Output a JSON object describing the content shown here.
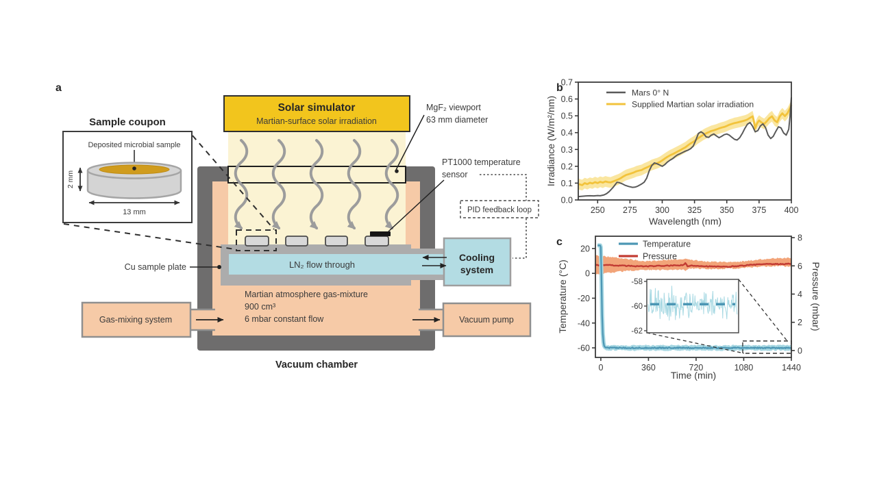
{
  "colors": {
    "solar_yellow": "#F2C51D",
    "beam_yellow": "#FBF3D3",
    "wall_gray": "#6E6D6D",
    "peach": "#F6CAA7",
    "plate_gray": "#ACACAC",
    "coupon_gray": "#D8D8D8",
    "cyl_gray": "#D4D4D4",
    "sample_gold": "#D09C1E",
    "cool_blue": "#B3DCE3",
    "mars_line": "#595959",
    "supplied_line": "#F2C33C",
    "supplied_band": "#FAE6A0",
    "temp_line": "#4C96B4",
    "temp_band": "#A6D7E2",
    "press_line": "#C23B33",
    "press_band": "#F2A479"
  },
  "panel_a": {
    "label": "a",
    "inset": {
      "title": "Sample coupon",
      "annotation": "Deposited microbial sample",
      "height": "2 mm",
      "diameter": "13 mm"
    },
    "solar": {
      "title": "Solar simulator",
      "subtitle": "Martian-surface solar irradiation"
    },
    "viewport": {
      "line1": "MgF₂ viewport",
      "line2": "63 mm diameter"
    },
    "sensor": {
      "line1": "PT1000 temperature",
      "line2": "sensor"
    },
    "pid": "PID feedback loop",
    "cooling": {
      "line1": "Cooling",
      "line2": "system"
    },
    "ln2": "LN₂ flow through",
    "cu_plate": "Cu sample plate",
    "atmosphere": {
      "line1": "Martian atmosphere gas-mixture",
      "line2": "900 cm³",
      "line3": "6 mbar constant flow"
    },
    "gas_box": "Gas-mixing system",
    "pump_box": "Vacuum pump",
    "chamber_label": "Vacuum chamber"
  },
  "chart_data": [
    {
      "id": "b",
      "type": "line",
      "panel_label": "b",
      "xlabel": "Wavelength (nm)",
      "ylabel": "Irradiance (W/m²/nm)",
      "xlim": [
        235,
        400
      ],
      "ylim": [
        0,
        0.7
      ],
      "xticks": [
        250,
        275,
        300,
        325,
        350,
        375,
        400
      ],
      "yticks": [
        0.0,
        0.1,
        0.2,
        0.3,
        0.4,
        0.5,
        0.6,
        0.7
      ],
      "grid": false,
      "legend_position": "upper left",
      "series": [
        {
          "name": "Mars 0° N",
          "color": "#595959",
          "points": [
            [
              235,
              0.02
            ],
            [
              238,
              0.022
            ],
            [
              241,
              0.024
            ],
            [
              244,
              0.025
            ],
            [
              247,
              0.024
            ],
            [
              250,
              0.026
            ],
            [
              252,
              0.025
            ],
            [
              255,
              0.03
            ],
            [
              257,
              0.038
            ],
            [
              259,
              0.05
            ],
            [
              262,
              0.075
            ],
            [
              265,
              0.105
            ],
            [
              267,
              0.102
            ],
            [
              269,
              0.096
            ],
            [
              271,
              0.088
            ],
            [
              274,
              0.08
            ],
            [
              277,
              0.075
            ],
            [
              279,
              0.076
            ],
            [
              281,
              0.082
            ],
            [
              284,
              0.095
            ],
            [
              286,
              0.105
            ],
            [
              288,
              0.13
            ],
            [
              290,
              0.175
            ],
            [
              292,
              0.205
            ],
            [
              294,
              0.22
            ],
            [
              296,
              0.215
            ],
            [
              298,
              0.208
            ],
            [
              300,
              0.2
            ],
            [
              302,
              0.21
            ],
            [
              304,
              0.225
            ],
            [
              306,
              0.236
            ],
            [
              308,
              0.245
            ],
            [
              310,
              0.258
            ],
            [
              312,
              0.268
            ],
            [
              314,
              0.275
            ],
            [
              316,
              0.283
            ],
            [
              318,
              0.29
            ],
            [
              320,
              0.296
            ],
            [
              322,
              0.305
            ],
            [
              324,
              0.32
            ],
            [
              326,
              0.355
            ],
            [
              328,
              0.395
            ],
            [
              330,
              0.405
            ],
            [
              332,
              0.395
            ],
            [
              334,
              0.375
            ],
            [
              336,
              0.372
            ],
            [
              338,
              0.385
            ],
            [
              340,
              0.392
            ],
            [
              342,
              0.38
            ],
            [
              344,
              0.37
            ],
            [
              346,
              0.378
            ],
            [
              348,
              0.388
            ],
            [
              350,
              0.392
            ],
            [
              352,
              0.385
            ],
            [
              354,
              0.372
            ],
            [
              356,
              0.36
            ],
            [
              358,
              0.356
            ],
            [
              360,
              0.37
            ],
            [
              362,
              0.395
            ],
            [
              364,
              0.425
            ],
            [
              366,
              0.45
            ],
            [
              368,
              0.46
            ],
            [
              370,
              0.438
            ],
            [
              372,
              0.405
            ],
            [
              374,
              0.412
            ],
            [
              376,
              0.44
            ],
            [
              378,
              0.452
            ],
            [
              380,
              0.43
            ],
            [
              382,
              0.385
            ],
            [
              384,
              0.365
            ],
            [
              386,
              0.378
            ],
            [
              388,
              0.408
            ],
            [
              390,
              0.435
            ],
            [
              392,
              0.428
            ],
            [
              394,
              0.398
            ],
            [
              396,
              0.385
            ],
            [
              398,
              0.42
            ],
            [
              399,
              0.5
            ],
            [
              400,
              0.61
            ]
          ]
        },
        {
          "name": "Supplied Martian solar irradiation",
          "color": "#F2C33C",
          "band_halfwidth": 0.032,
          "band_color": "#FAE6A0",
          "points": [
            [
              235,
              0.095
            ],
            [
              238,
              0.088
            ],
            [
              240,
              0.1
            ],
            [
              242,
              0.094
            ],
            [
              244,
              0.102
            ],
            [
              246,
              0.098
            ],
            [
              248,
              0.106
            ],
            [
              250,
              0.1
            ],
            [
              252,
              0.108
            ],
            [
              254,
              0.103
            ],
            [
              256,
              0.11
            ],
            [
              258,
              0.106
            ],
            [
              260,
              0.104
            ],
            [
              262,
              0.11
            ],
            [
              264,
              0.116
            ],
            [
              266,
              0.122
            ],
            [
              268,
              0.13
            ],
            [
              270,
              0.14
            ],
            [
              272,
              0.148
            ],
            [
              274,
              0.153
            ],
            [
              276,
              0.158
            ],
            [
              278,
              0.163
            ],
            [
              280,
              0.17
            ],
            [
              282,
              0.174
            ],
            [
              284,
              0.178
            ],
            [
              286,
              0.186
            ],
            [
              288,
              0.193
            ],
            [
              290,
              0.2
            ],
            [
              292,
              0.208
            ],
            [
              294,
              0.213
            ],
            [
              296,
              0.218
            ],
            [
              298,
              0.225
            ],
            [
              300,
              0.235
            ],
            [
              302,
              0.246
            ],
            [
              304,
              0.256
            ],
            [
              306,
              0.265
            ],
            [
              308,
              0.272
            ],
            [
              310,
              0.28
            ],
            [
              312,
              0.288
            ],
            [
              314,
              0.296
            ],
            [
              316,
              0.305
            ],
            [
              318,
              0.313
            ],
            [
              320,
              0.325
            ],
            [
              322,
              0.336
            ],
            [
              324,
              0.345
            ],
            [
              326,
              0.356
            ],
            [
              328,
              0.368
            ],
            [
              330,
              0.378
            ],
            [
              332,
              0.388
            ],
            [
              334,
              0.396
            ],
            [
              336,
              0.403
            ],
            [
              338,
              0.41
            ],
            [
              340,
              0.414
            ],
            [
              342,
              0.419
            ],
            [
              344,
              0.425
            ],
            [
              346,
              0.43
            ],
            [
              348,
              0.434
            ],
            [
              350,
              0.44
            ],
            [
              352,
              0.447
            ],
            [
              354,
              0.452
            ],
            [
              356,
              0.457
            ],
            [
              358,
              0.46
            ],
            [
              360,
              0.464
            ],
            [
              362,
              0.468
            ],
            [
              364,
              0.472
            ],
            [
              366,
              0.478
            ],
            [
              368,
              0.488
            ],
            [
              370,
              0.497
            ],
            [
              371,
              0.468
            ],
            [
              372,
              0.425
            ],
            [
              373,
              0.448
            ],
            [
              374,
              0.462
            ],
            [
              375,
              0.472
            ],
            [
              377,
              0.46
            ],
            [
              379,
              0.452
            ],
            [
              381,
              0.468
            ],
            [
              383,
              0.486
            ],
            [
              385,
              0.497
            ],
            [
              387,
              0.473
            ],
            [
              389,
              0.462
            ],
            [
              391,
              0.496
            ],
            [
              393,
              0.515
            ],
            [
              395,
              0.498
            ],
            [
              397,
              0.515
            ],
            [
              399,
              0.545
            ],
            [
              400,
              0.565
            ]
          ]
        }
      ]
    },
    {
      "id": "c",
      "type": "line",
      "panel_label": "c",
      "xlabel": "Time (min)",
      "ylabel_left": "Temperature (°C)",
      "ylabel_right": "Pressure (mbar)",
      "xlim": [
        -41,
        1440
      ],
      "ylim_left": [
        -67.7,
        29.9
      ],
      "ylim_right": [
        -0.49,
        8.1
      ],
      "xticks": [
        0,
        360,
        720,
        1080,
        1440
      ],
      "yticks_left": [
        20,
        0,
        -20,
        -40,
        -60
      ],
      "yticks_right": [
        0,
        2,
        4,
        6,
        8
      ],
      "grid": false,
      "legend_position": "upper left",
      "series": [
        {
          "name": "Temperature",
          "axis": "left",
          "color": "#4C96B4",
          "band_color": "#A6D7E2",
          "noise_amplitude": 0.45,
          "points": [
            [
              -25,
              22.5
            ],
            [
              -5,
              22.5
            ],
            [
              0,
              21
            ],
            [
              3,
              8
            ],
            [
              6,
              -12
            ],
            [
              9,
              -30
            ],
            [
              13,
              -45
            ],
            [
              18,
              -54
            ],
            [
              24,
              -58
            ],
            [
              32,
              -59.6
            ],
            [
              45,
              -60
            ],
            [
              360,
              -60
            ],
            [
              720,
              -60
            ],
            [
              1080,
              -60
            ],
            [
              1440,
              -60
            ]
          ]
        },
        {
          "name": "Pressure",
          "axis": "right",
          "color": "#C23B33",
          "band_color": "#F2A479",
          "noise_amplitude": 0.03,
          "points": [
            [
              -41,
              6.05
            ],
            [
              50,
              6.05
            ],
            [
              150,
              6.02
            ],
            [
              250,
              5.98
            ],
            [
              350,
              5.97
            ],
            [
              450,
              6.0
            ],
            [
              550,
              6.02
            ],
            [
              620,
              6.05
            ],
            [
              640,
              6.18
            ],
            [
              655,
              5.95
            ],
            [
              680,
              6.02
            ],
            [
              750,
              6.0
            ],
            [
              850,
              5.95
            ],
            [
              950,
              5.93
            ],
            [
              1050,
              6.0
            ],
            [
              1150,
              6.08
            ],
            [
              1250,
              6.12
            ],
            [
              1350,
              6.12
            ],
            [
              1440,
              6.15
            ]
          ],
          "band_points": [
            [
              -41,
              5.35,
              6.75
            ],
            [
              0,
              5.45,
              6.7
            ],
            [
              100,
              5.55,
              6.6
            ],
            [
              200,
              5.65,
              6.5
            ],
            [
              300,
              5.7,
              6.35
            ],
            [
              360,
              5.72,
              6.32
            ],
            [
              450,
              5.7,
              6.4
            ],
            [
              550,
              5.72,
              6.45
            ],
            [
              620,
              5.75,
              6.5
            ],
            [
              640,
              5.6,
              6.55
            ],
            [
              660,
              5.8,
              6.45
            ],
            [
              750,
              5.8,
              6.35
            ],
            [
              850,
              5.78,
              6.3
            ],
            [
              950,
              5.8,
              6.28
            ],
            [
              1050,
              5.82,
              6.3
            ],
            [
              1150,
              5.9,
              6.4
            ],
            [
              1250,
              5.95,
              6.5
            ],
            [
              1350,
              6.0,
              6.55
            ],
            [
              1440,
              5.95,
              6.55
            ]
          ]
        }
      ],
      "inset": {
        "yticks": [
          -58,
          -60,
          -62
        ],
        "mean": -59.85,
        "noise_amplitude": 1.0
      }
    }
  ]
}
